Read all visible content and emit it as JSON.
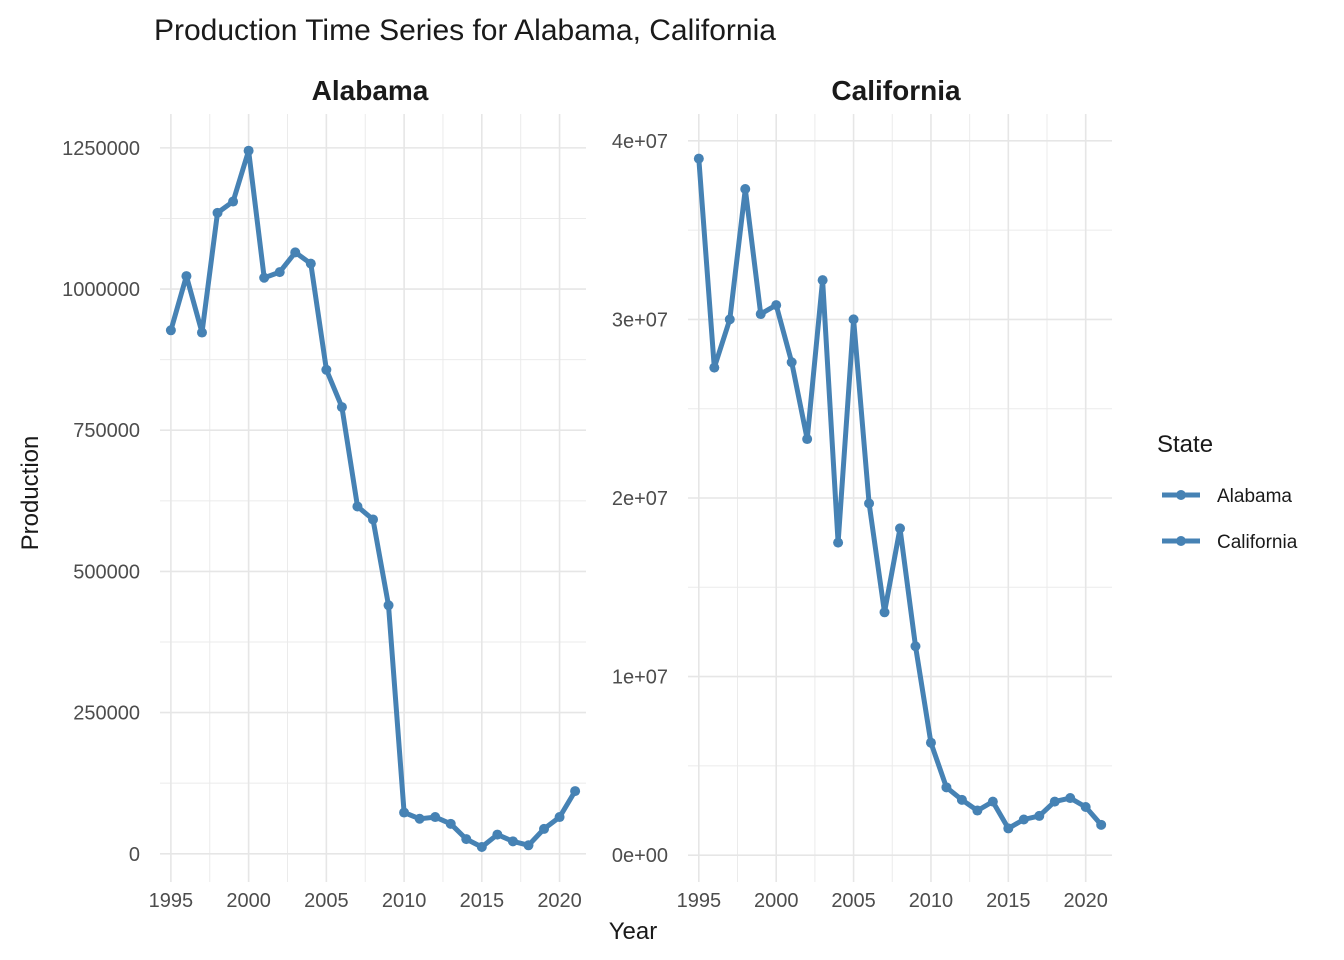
{
  "chart_data": {
    "type": "line",
    "title": "Production Time Series for Alabama, California",
    "xlabel": "Year",
    "ylabel": "Production",
    "grid": true,
    "line_color": "#4682B4",
    "legend": {
      "title": "State",
      "position": "right",
      "entries": [
        "Alabama",
        "California"
      ]
    },
    "x_ticks": [
      "1995",
      "2000",
      "2005",
      "2010",
      "2015",
      "2020"
    ],
    "x_tick_values": [
      1995,
      2000,
      2005,
      2010,
      2015,
      2020
    ],
    "xlim": [
      1994.3,
      2021.7
    ],
    "panels": [
      {
        "name": "Alabama",
        "ylim": [
          -50000,
          1310000
        ],
        "y_ticks": [
          "0",
          "250000",
          "500000",
          "750000",
          "1000000",
          "1250000"
        ],
        "y_tick_values": [
          0,
          250000,
          500000,
          750000,
          1000000,
          1250000
        ],
        "x": [
          1995,
          1996,
          1997,
          1998,
          1999,
          2000,
          2001,
          2002,
          2003,
          2004,
          2005,
          2006,
          2007,
          2008,
          2009,
          2010,
          2011,
          2012,
          2013,
          2014,
          2015,
          2016,
          2017,
          2018,
          2019,
          2020,
          2021
        ],
        "values": [
          927000,
          1023000,
          923000,
          1135000,
          1155000,
          1245000,
          1020000,
          1030000,
          1065000,
          1045000,
          857000,
          791000,
          615000,
          592000,
          440000,
          73000,
          62000,
          65000,
          53000,
          26000,
          12000,
          34000,
          22000,
          15000,
          44000,
          65000,
          111000
        ]
      },
      {
        "name": "California",
        "ylim": [
          -1500000,
          41500000
        ],
        "y_ticks": [
          "0e+00",
          "1e+07",
          "2e+07",
          "3e+07",
          "4e+07"
        ],
        "y_tick_values": [
          0,
          10000000,
          20000000,
          30000000,
          40000000
        ],
        "x": [
          1995,
          1996,
          1997,
          1998,
          1999,
          2000,
          2001,
          2002,
          2003,
          2004,
          2005,
          2006,
          2007,
          2008,
          2009,
          2010,
          2011,
          2012,
          2013,
          2014,
          2015,
          2016,
          2017,
          2018,
          2019,
          2020,
          2021
        ],
        "values": [
          39000000,
          27300000,
          30000000,
          37300000,
          30300000,
          30800000,
          27600000,
          23300000,
          32200000,
          17500000,
          30000000,
          19700000,
          13600000,
          18300000,
          11700000,
          6300000,
          3800000,
          3100000,
          2500000,
          3000000,
          1500000,
          2000000,
          2200000,
          3000000,
          3200000,
          2700000,
          1700000
        ]
      }
    ]
  }
}
